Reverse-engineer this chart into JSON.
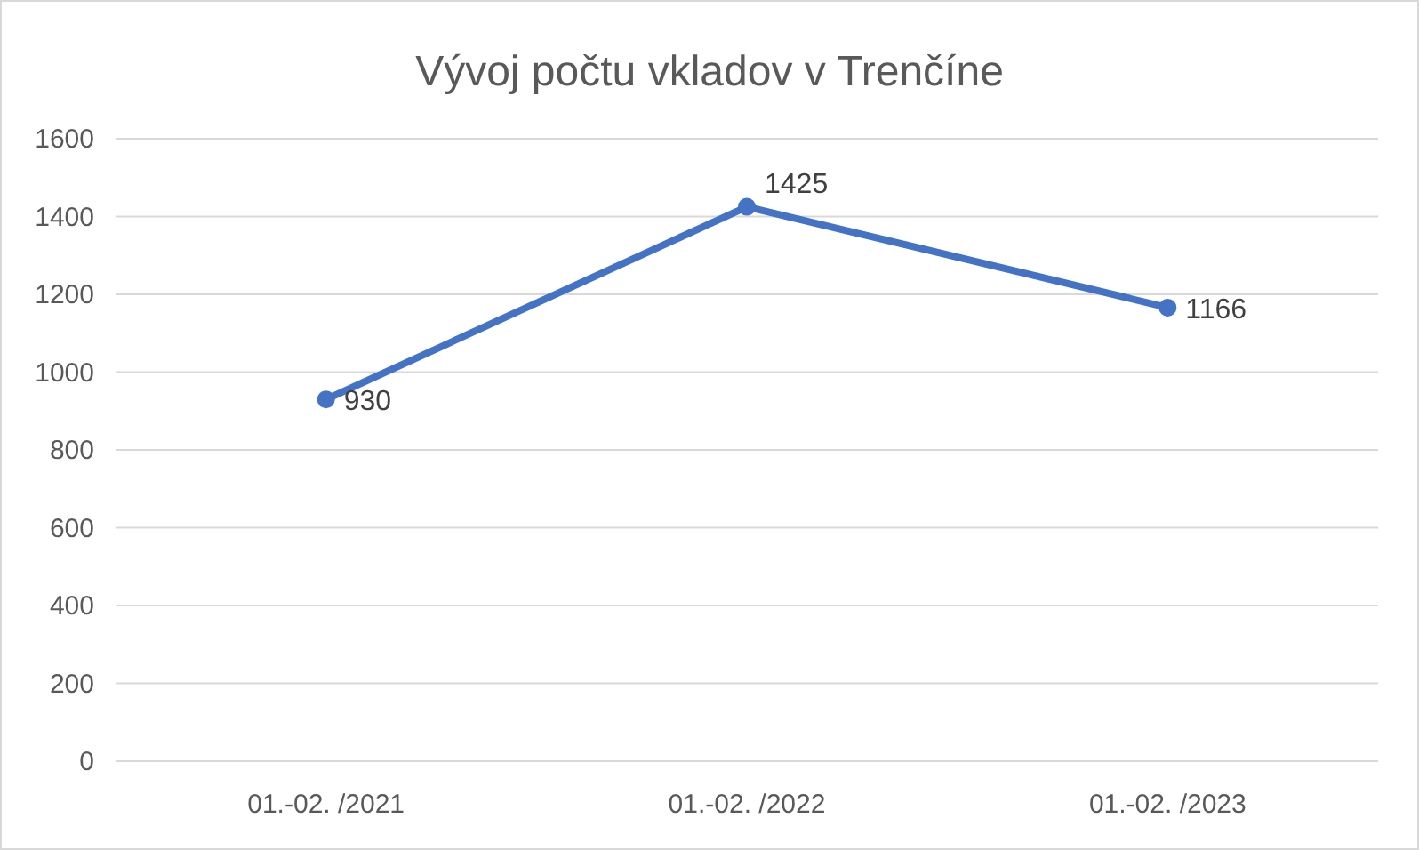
{
  "chart_data": {
    "type": "line",
    "title": "Vývoj počtu vkladov v Trenčíne",
    "categories": [
      "01.-02. /2021",
      "01.-02. /2022",
      "01.-02. /2023"
    ],
    "series": [
      {
        "color": "#4472c4",
        "values": [
          930,
          1425,
          1166
        ]
      }
    ],
    "ylim": [
      0,
      1600
    ],
    "yticks": [
      0,
      200,
      400,
      600,
      800,
      1000,
      1200,
      1400,
      1600
    ],
    "grid": "y",
    "marker": "circle",
    "line_style": "solid",
    "data_labels": true
  }
}
